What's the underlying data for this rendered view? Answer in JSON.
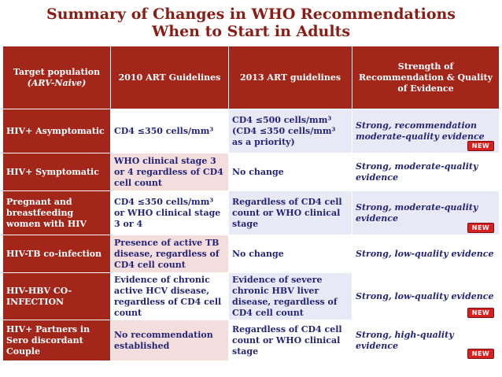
{
  "title": {
    "line1": "Summary of Changes in WHO Recommendations",
    "line2": "When to Start in Adults"
  },
  "table": {
    "headers": {
      "population": "Target population",
      "population_sub": "(ARV-Naive)",
      "art2010": "2010 ART Guidelines",
      "art2013": "2013 ART guidelines",
      "strength": "Strength of Recommendation & Quality of Evidence"
    },
    "rows": [
      {
        "population": "HIV+ Asymptomatic",
        "art2010": "CD4 ≤350 cells/mm³",
        "art2013": "CD4 ≤500 cells/mm³ (CD4 ≤350 cells/mm³ as a priority)",
        "strength": "Strong, recommendation moderate-quality evidence",
        "badge": "NEW"
      },
      {
        "population": "HIV+ Symptomatic",
        "art2010": "WHO clinical stage 3 or 4 regardless of CD4 cell count",
        "art2013": "No change",
        "strength": "Strong, moderate-quality evidence",
        "badge": ""
      },
      {
        "population": "Pregnant and breastfeeding women with HIV",
        "art2010": "CD4 ≤350 cells/mm³ or WHO clinical stage 3 or 4",
        "art2013": "Regardless of CD4 cell count or WHO clinical stage",
        "strength": "Strong, moderate-quality evidence",
        "badge": "NEW"
      },
      {
        "population": "HIV-TB co-infection",
        "art2010": "Presence of active TB disease, regardless of CD4 cell count",
        "art2013": "No change",
        "strength": "Strong, low-quality evidence",
        "badge": ""
      },
      {
        "population": "HIV-HBV CO-INFECTION",
        "art2010": "Evidence of chronic active HCV disease, regardless of CD4 cell count",
        "art2013": "Evidence of severe chronic HBV liver disease, regardless of CD4 cell count",
        "strength": "Strong, low-quality evidence",
        "badge": "NEW"
      },
      {
        "population": "HIV+ Partners in Sero discordant Couple",
        "art2010": "No recommendation established",
        "art2013": "Regardless of CD4 cell count or WHO clinical stage",
        "strength": "Strong, high-quality evidence",
        "badge": "NEW"
      }
    ]
  },
  "colors": {
    "title_text": "#8b1c14",
    "header_bg": "#a3261a",
    "body_text": "#24257a",
    "pink_cell": "#f4dedd",
    "lavender_cell": "#e9e9f5",
    "badge_red": "#d8211f"
  }
}
